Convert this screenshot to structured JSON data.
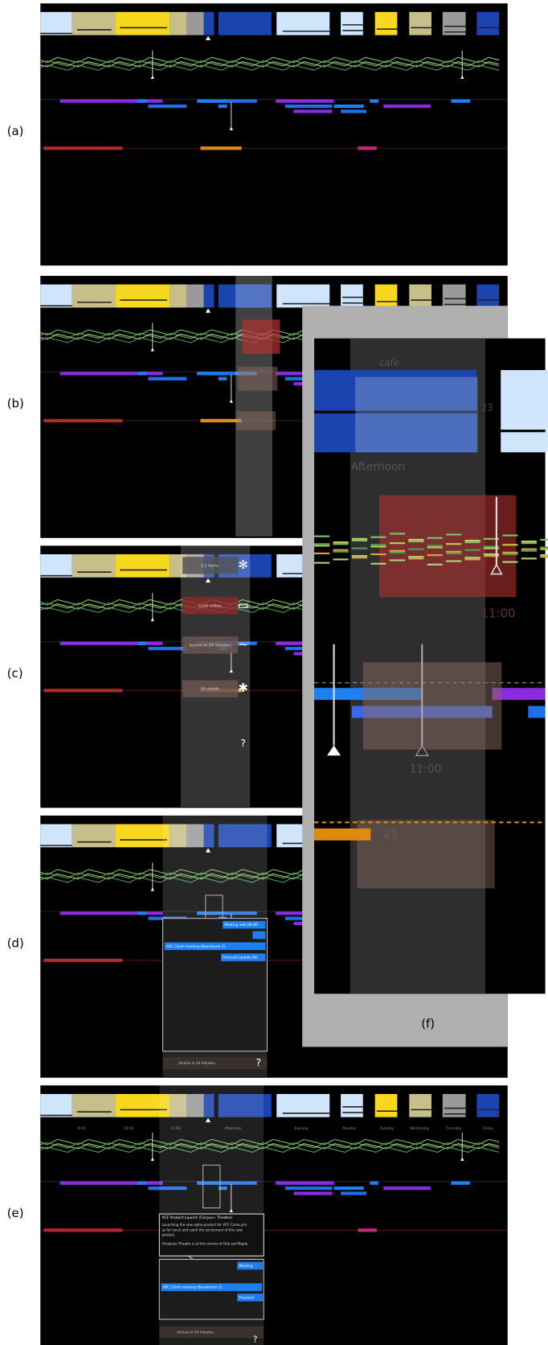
{
  "panels": [
    "(a)",
    "(b)",
    "(c)",
    "(d)",
    "(e)",
    "(f)"
  ],
  "header_labels": [
    "9:00",
    "10:00",
    "11:00",
    "Afternoon",
    "Evening",
    "Monday",
    "Tuesday",
    "Wednesday",
    "Thursday",
    "Friday"
  ],
  "panel_c": {
    "items": [
      "2.2 items",
      "sushi online",
      "lecture in 24 minutes",
      "24 emails"
    ],
    "help": "?"
  },
  "panel_d": {
    "events": [
      "Meeting with JW-DR",
      "ARC Client meeting (Boardroom 2)",
      "Financial update (Bo"
    ],
    "reminder": "lecture in 24 minutes",
    "help": "?"
  },
  "panel_e": {
    "popup_title": "VCF Product Launch (Corpus+ Theatre)",
    "popup_text": [
      "Launching the new alpha product for VCF. Come join",
      "us for lunch and catch the excitement of this new",
      "product.",
      "Oneplace Theatre is at the corners of Oak and Maple."
    ],
    "events": [
      "Meeting",
      "ARC Client meeting (Boardroom 2)",
      "Financial"
    ],
    "reminder": "lecture in 24 minutes",
    "help": "?"
  },
  "panel_f": {
    "cafe": "cafe",
    "count": "23",
    "period": "Afternoon",
    "time_top": "11:00",
    "time": "11:00",
    "count2": "21"
  }
}
